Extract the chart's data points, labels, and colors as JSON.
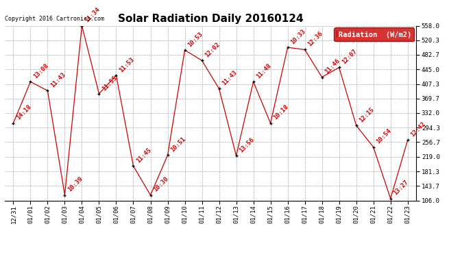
{
  "title": "Solar Radiation Daily 20160124",
  "copyright_text": "Copyright 2016 Cartronics.com",
  "legend_label": "Radiation  (W/m2)",
  "x_labels": [
    "12/31",
    "01/01",
    "01/02",
    "01/03",
    "01/04",
    "01/05",
    "01/06",
    "01/07",
    "01/08",
    "01/09",
    "01/10",
    "01/11",
    "01/12",
    "01/13",
    "01/14",
    "01/15",
    "01/16",
    "01/17",
    "01/18",
    "01/19",
    "01/20",
    "01/21",
    "01/22",
    "01/23"
  ],
  "y_values": [
    306,
    413,
    390,
    120,
    558,
    382,
    430,
    195,
    120,
    223,
    495,
    468,
    395,
    222,
    413,
    306,
    502,
    496,
    425,
    450,
    300,
    244,
    111,
    262
  ],
  "point_labels": [
    "14:18",
    "13:08",
    "11:43",
    "10:39",
    "11:34",
    "11:55",
    "11:53",
    "11:45",
    "10:30",
    "10:51",
    "10:53",
    "12:02",
    "11:43",
    "13:56",
    "11:48",
    "10:18",
    "10:33",
    "12:36",
    "11:46",
    "12:07",
    "12:15",
    "10:54",
    "13:27",
    "12:42"
  ],
  "ylim_min": 106.0,
  "ylim_max": 558.0,
  "yticks": [
    106.0,
    143.7,
    181.3,
    219.0,
    256.7,
    294.3,
    332.0,
    369.7,
    407.3,
    445.0,
    482.7,
    520.3,
    558.0
  ],
  "line_color": "#cc0000",
  "marker_color": "#000000",
  "bg_color": "#ffffff",
  "grid_color": "#aaaaaa",
  "label_color": "#cc0000",
  "legend_bg": "#cc0000",
  "legend_text_color": "#ffffff",
  "title_fontsize": 11,
  "label_fontsize": 6.5,
  "tick_fontsize": 6.5,
  "copyright_fontsize": 6
}
